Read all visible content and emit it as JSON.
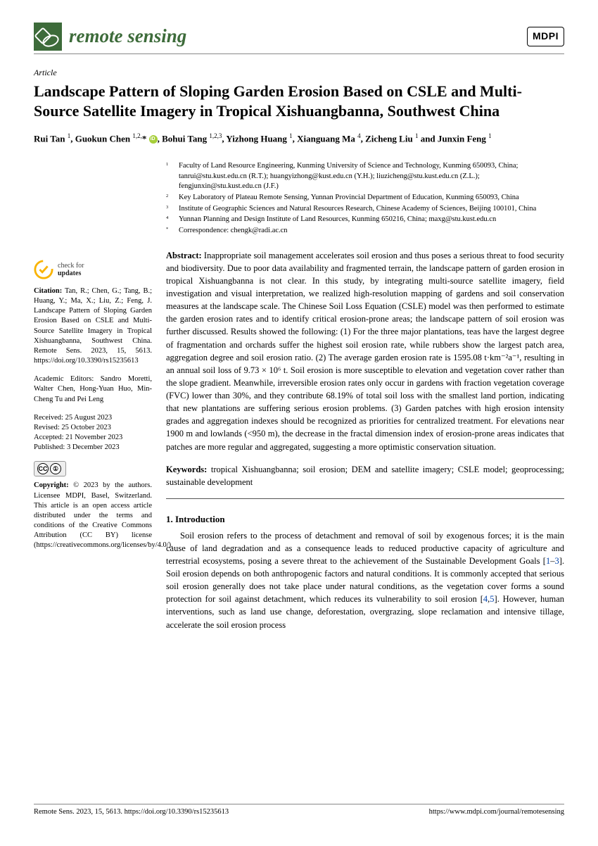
{
  "header": {
    "journal_name": "remote sensing",
    "publisher_badge": "MDPI"
  },
  "article": {
    "type": "Article",
    "title": "Landscape Pattern of Sloping Garden Erosion Based on CSLE and Multi-Source Satellite Imagery in Tropical Xishuangbanna, Southwest China",
    "authors_html": "Rui Tan <sup>1</sup>, Guokun Chen <sup>1,2,</sup>* <span class='orcid'></span>, Bohui Tang <sup>1,2,3</sup>, Yizhong Huang <sup>1</sup>, Xianguang Ma <sup>4</sup>, Zicheng Liu <sup>1</sup> and Junxin Feng <sup>1</sup>"
  },
  "affiliations": [
    {
      "num": "1",
      "text": "Faculty of Land Resource Engineering, Kunming University of Science and Technology, Kunming 650093, China; tanrui@stu.kust.edu.cn (R.T.); huangyizhong@kust.edu.cn (Y.H.); liuzicheng@stu.kust.edu.cn (Z.L.); fengjunxin@stu.kust.edu.cn (J.F.)"
    },
    {
      "num": "2",
      "text": "Key Laboratory of Plateau Remote Sensing, Yunnan Provincial Department of Education, Kunming 650093, China"
    },
    {
      "num": "3",
      "text": "Institute of Geographic Sciences and Natural Resources Research, Chinese Academy of Sciences, Beijing 100101, China"
    },
    {
      "num": "4",
      "text": "Yunnan Planning and Design Institute of Land Resources, Kunming 650216, China; maxg@stu.kust.edu.cn"
    },
    {
      "num": "*",
      "text": "Correspondence: chengk@radi.ac.cn"
    }
  ],
  "abstract": {
    "label": "Abstract:",
    "text": "Inappropriate soil management accelerates soil erosion and thus poses a serious threat to food security and biodiversity. Due to poor data availability and fragmented terrain, the landscape pattern of garden erosion in tropical Xishuangbanna is not clear. In this study, by integrating multi-source satellite imagery, field investigation and visual interpretation, we realized high-resolution mapping of gardens and soil conservation measures at the landscape scale. The Chinese Soil Loss Equation (CSLE) model was then performed to estimate the garden erosion rates and to identify critical erosion-prone areas; the landscape pattern of soil erosion was further discussed. Results showed the following: (1) For the three major plantations, teas have the largest degree of fragmentation and orchards suffer the highest soil erosion rate, while rubbers show the largest patch area, aggregation degree and soil erosion ratio. (2) The average garden erosion rate is 1595.08 t·km⁻²a⁻¹, resulting in an annual soil loss of 9.73 × 10⁶ t. Soil erosion is more susceptible to elevation and vegetation cover rather than the slope gradient. Meanwhile, irreversible erosion rates only occur in gardens with fraction vegetation coverage (FVC) lower than 30%, and they contribute 68.19% of total soil loss with the smallest land portion, indicating that new plantations are suffering serious erosion problems. (3) Garden patches with high erosion intensity grades and aggregation indexes should be recognized as priorities for centralized treatment. For elevations near 1900 m and lowlands (<950 m), the decrease in the fractal dimension index of erosion-prone areas indicates that patches are more regular and aggregated, suggesting a more optimistic conservation situation."
  },
  "keywords": {
    "label": "Keywords:",
    "text": "tropical Xishuangbanna; soil erosion; DEM and satellite imagery; CSLE model; geoprocessing; sustainable development"
  },
  "sidebar": {
    "check_line1": "check for",
    "check_line2": "updates",
    "citation_label": "Citation:",
    "citation": "Tan, R.; Chen, G.; Tang, B.; Huang, Y.; Ma, X.; Liu, Z.; Feng, J. Landscape Pattern of Sloping Garden Erosion Based on CSLE and Multi-Source Satellite Imagery in Tropical Xishuangbanna, Southwest China. Remote Sens. 2023, 15, 5613. https://doi.org/10.3390/rs15235613",
    "editors_label": "Academic Editors:",
    "editors": "Sandro Moretti, Walter Chen, Hong-Yuan Huo, Min-Cheng Tu and Pei Leng",
    "received": "Received: 25 August 2023",
    "revised": "Revised: 25 October 2023",
    "accepted": "Accepted: 21 November 2023",
    "published": "Published: 3 December 2023",
    "copyright_label": "Copyright:",
    "copyright": "© 2023 by the authors. Licensee MDPI, Basel, Switzerland. This article is an open access article distributed under the terms and conditions of the Creative Commons Attribution (CC BY) license (https://creativecommons.org/licenses/by/4.0/)."
  },
  "intro": {
    "heading": "1. Introduction",
    "body_html": "Soil erosion refers to the process of detachment and removal of soil by exogenous forces; it is the main cause of land degradation and as a consequence leads to reduced productive capacity of agriculture and terrestrial ecosystems, posing a severe threat to the achievement of the Sustainable Development Goals [<span class='ref-link'>1</span>–<span class='ref-link'>3</span>]. Soil erosion depends on both anthropogenic factors and natural conditions. It is commonly accepted that serious soil erosion generally does not take place under natural conditions, as the vegetation cover forms a sound protection for soil against detachment, which reduces its vulnerability to soil erosion [<span class='ref-link'>4</span>,<span class='ref-link'>5</span>]. However, human interventions, such as land use change, deforestation, overgrazing, slope reclamation and intensive tillage, accelerate the soil erosion process"
  },
  "footer": {
    "left": "Remote Sens. 2023, 15, 5613. https://doi.org/10.3390/rs15235613",
    "right": "https://www.mdpi.com/journal/remotesensing"
  }
}
